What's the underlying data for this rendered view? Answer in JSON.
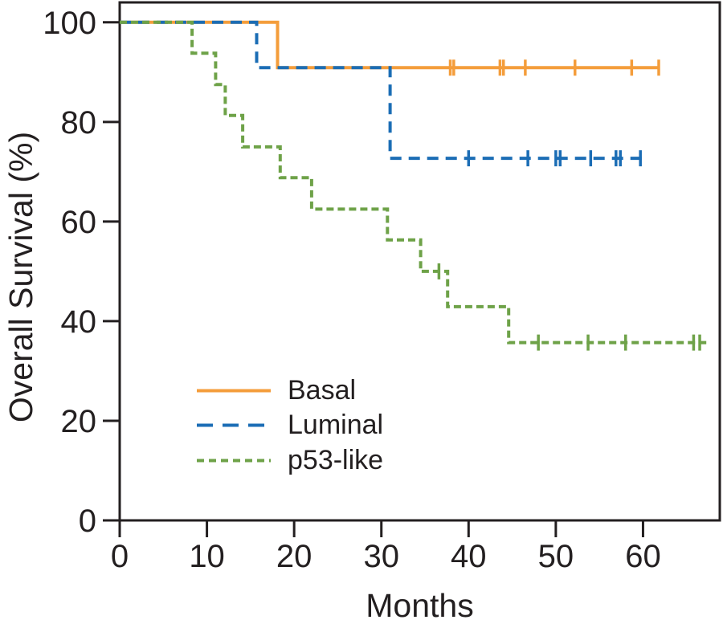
{
  "figure": {
    "background": "#FFFFFF"
  },
  "colors": {
    "axis": "#231F20",
    "basal": "#F49D3B",
    "luminal": "#1B6DB5",
    "p53_like": "#6EA248"
  },
  "chart_data": {
    "type": "line",
    "subtype": "kaplan-meier-step",
    "title": "",
    "xlabel": "Months",
    "ylabel": "Overall Survival (%)",
    "xlim": [
      0,
      68.8
    ],
    "ylim": [
      0,
      104
    ],
    "xticks": [
      0,
      10,
      20,
      30,
      40,
      50,
      60
    ],
    "yticks": [
      0,
      20,
      40,
      60,
      80,
      100
    ],
    "grid": false,
    "legend_position": "inside lower-left",
    "series": [
      {
        "name": "Basal",
        "color": "#F49D3B",
        "dash": "solid",
        "steps": [
          [
            0,
            100
          ],
          [
            18.1,
            90.9
          ]
        ],
        "end_x": 61.8,
        "censors": [
          [
            37.9,
            90.9
          ],
          [
            38.3,
            90.9
          ],
          [
            43.6,
            90.9
          ],
          [
            44.0,
            90.9
          ],
          [
            46.5,
            90.9
          ],
          [
            52.2,
            90.9
          ],
          [
            58.7,
            90.9
          ],
          [
            61.8,
            90.9
          ]
        ]
      },
      {
        "name": "Luminal",
        "color": "#1B6DB5",
        "dash": "long-dash",
        "steps": [
          [
            0,
            100
          ],
          [
            15.7,
            90.9
          ],
          [
            31.0,
            72.7
          ]
        ],
        "end_x": 60.0,
        "censors": [
          [
            40.0,
            72.7
          ],
          [
            46.8,
            72.7
          ],
          [
            50.0,
            72.7
          ],
          [
            50.5,
            72.7
          ],
          [
            54.0,
            72.7
          ],
          [
            56.9,
            72.7
          ],
          [
            57.4,
            72.7
          ],
          [
            59.7,
            72.7
          ]
        ]
      },
      {
        "name": "p53-like",
        "color": "#6EA248",
        "dash": "short-dash",
        "steps": [
          [
            0,
            100
          ],
          [
            8.3,
            93.8
          ],
          [
            11.0,
            87.5
          ],
          [
            12.1,
            81.3
          ],
          [
            14.1,
            75.0
          ],
          [
            18.4,
            68.8
          ],
          [
            22.0,
            62.5
          ],
          [
            30.7,
            56.3
          ],
          [
            34.5,
            50.0
          ],
          [
            37.6,
            42.9
          ],
          [
            44.6,
            35.7
          ]
        ],
        "end_x": 67.4,
        "censors": [
          [
            36.6,
            50.0
          ],
          [
            48.0,
            35.7
          ],
          [
            53.7,
            35.7
          ],
          [
            58.0,
            35.7
          ],
          [
            65.8,
            35.7
          ],
          [
            66.5,
            35.7
          ]
        ]
      }
    ]
  }
}
